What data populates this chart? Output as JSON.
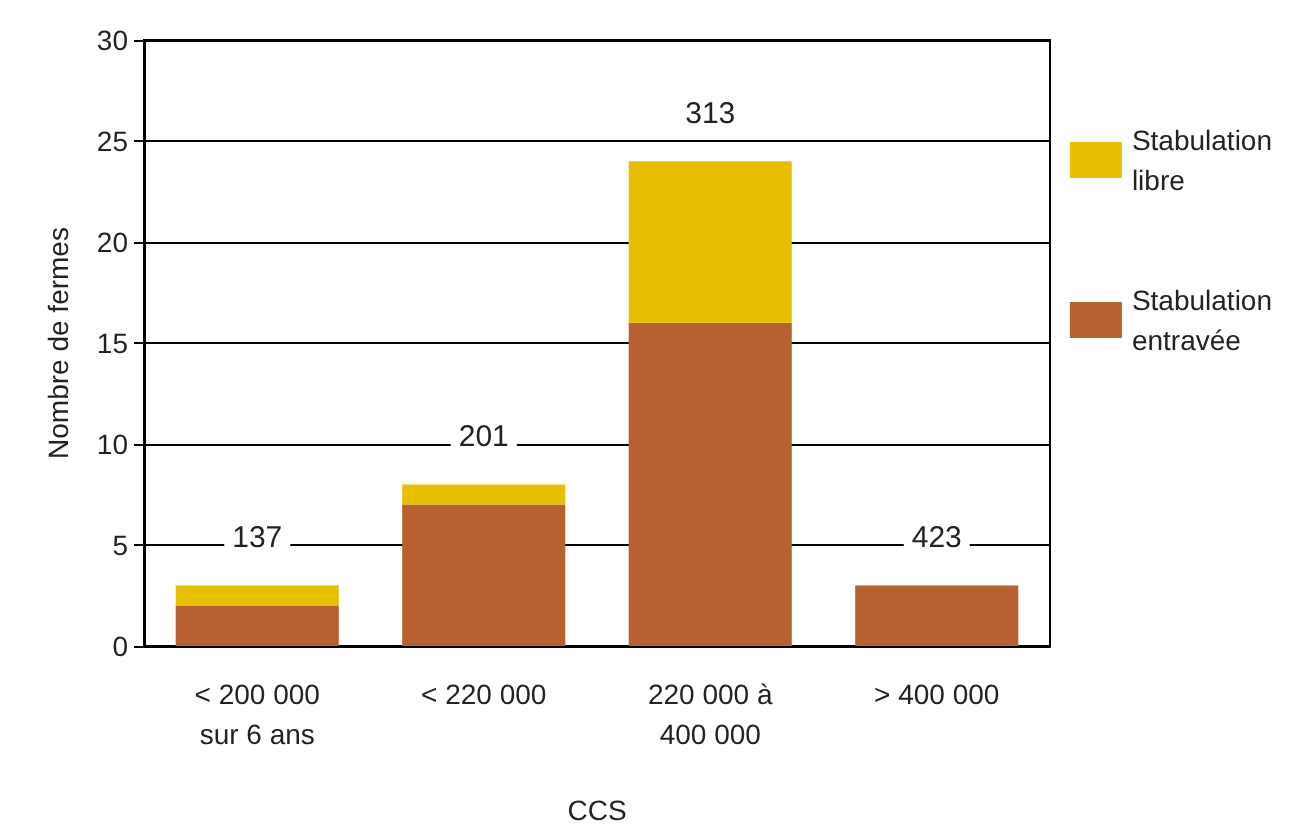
{
  "chart_data": {
    "type": "bar",
    "stacked": true,
    "xlabel": "CCS",
    "ylabel": "Nombre de fermes",
    "categories": [
      "< 200 000\nsur 6 ans",
      "< 220 000",
      "220 000 à\n400 000",
      "> 400 000"
    ],
    "series": [
      {
        "name": "Stabulation entravée",
        "color": "#b86130",
        "values": [
          2,
          7,
          16,
          3
        ]
      },
      {
        "name": "Stabulation libre",
        "color": "#e6c000",
        "values": [
          1,
          1,
          8,
          0
        ]
      }
    ],
    "annotations": [
      {
        "text": "137",
        "x": "< 200 000\nsur 6 ans",
        "y": 3
      },
      {
        "text": "201",
        "x": "< 220 000",
        "y": 8
      },
      {
        "text": "313",
        "x": "220 000 à\n400 000",
        "y": 24
      },
      {
        "text": "423",
        "x": "> 400 000",
        "y": 3
      }
    ],
    "ylim": [
      0,
      30
    ],
    "yticks": [
      0,
      5,
      10,
      15,
      20,
      25,
      30
    ],
    "grid": "y",
    "legend": "right"
  }
}
